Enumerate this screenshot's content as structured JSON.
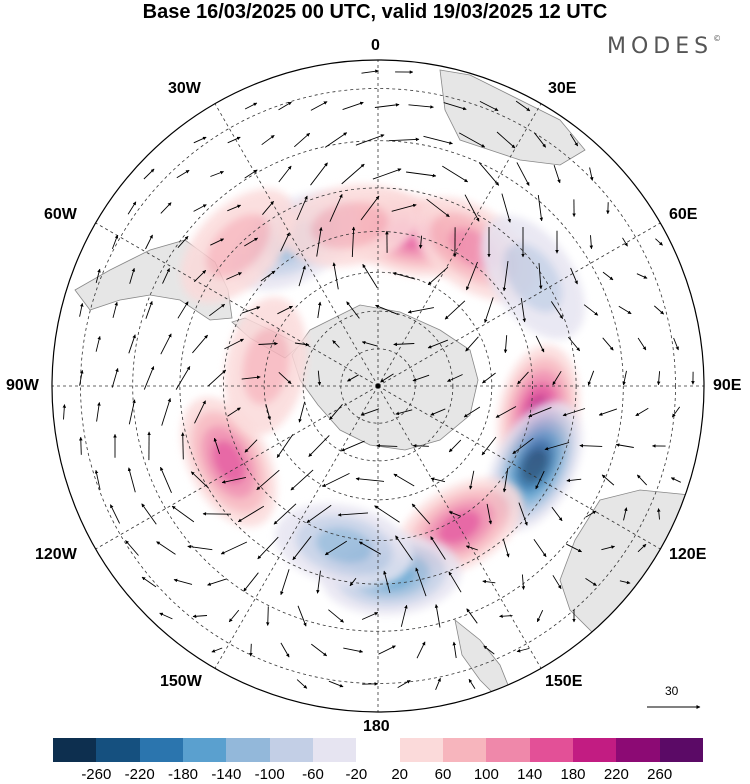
{
  "title": "Base 16/03/2025 00 UTC, valid 19/03/2025 12 UTC",
  "brand": "MODES",
  "brand_mark": "©",
  "longitude_labels": {
    "lon_0": "0",
    "lon_30e": "30E",
    "lon_60e": "60E",
    "lon_90e": "90E",
    "lon_120e": "120E",
    "lon_150e": "150E",
    "lon_180": "180",
    "lon_150w": "150W",
    "lon_120w": "120W",
    "lon_90w": "90W",
    "lon_60w": "60W",
    "lon_30w": "30W"
  },
  "reference_vector": {
    "label": "30"
  },
  "colorbar": {
    "colors": [
      "#0d2f4f",
      "#15507f",
      "#2b75ae",
      "#5aa0cf",
      "#93b8da",
      "#c3cfe6",
      "#e6e4f1",
      "#ffffff",
      "#fbdada",
      "#f7b5bd",
      "#ef88aa",
      "#e35097",
      "#c21c82",
      "#8c0a74",
      "#5b0a66"
    ],
    "tick_labels": [
      "-260",
      "-220",
      "-180",
      "-140",
      "-100",
      "-60",
      "-20",
      "20",
      "60",
      "100",
      "140",
      "180",
      "220",
      "260"
    ]
  },
  "map": {
    "projection": "south polar stereographic",
    "anomaly_centers": [
      {
        "lon": 12,
        "lat": -50,
        "value": 155
      },
      {
        "lon": 35,
        "lat": -47,
        "value": 80
      },
      {
        "lon": 55,
        "lat": -42,
        "value": -70
      },
      {
        "lon": 100,
        "lat": -48,
        "value": 165
      },
      {
        "lon": 117,
        "lat": -45,
        "value": -230
      },
      {
        "lon": 150,
        "lat": -48,
        "value": 150
      },
      {
        "lon": 176,
        "lat": -42,
        "value": -120
      },
      {
        "lon": -168,
        "lat": -48,
        "value": -90
      },
      {
        "lon": -117,
        "lat": -47,
        "value": 145
      },
      {
        "lon": -80,
        "lat": -60,
        "value": 60
      },
      {
        "lon": -30,
        "lat": -47,
        "value": -90
      },
      {
        "lon": -10,
        "lat": -48,
        "value": 70
      },
      {
        "lon": -45,
        "lat": -40,
        "value": 60
      }
    ]
  }
}
